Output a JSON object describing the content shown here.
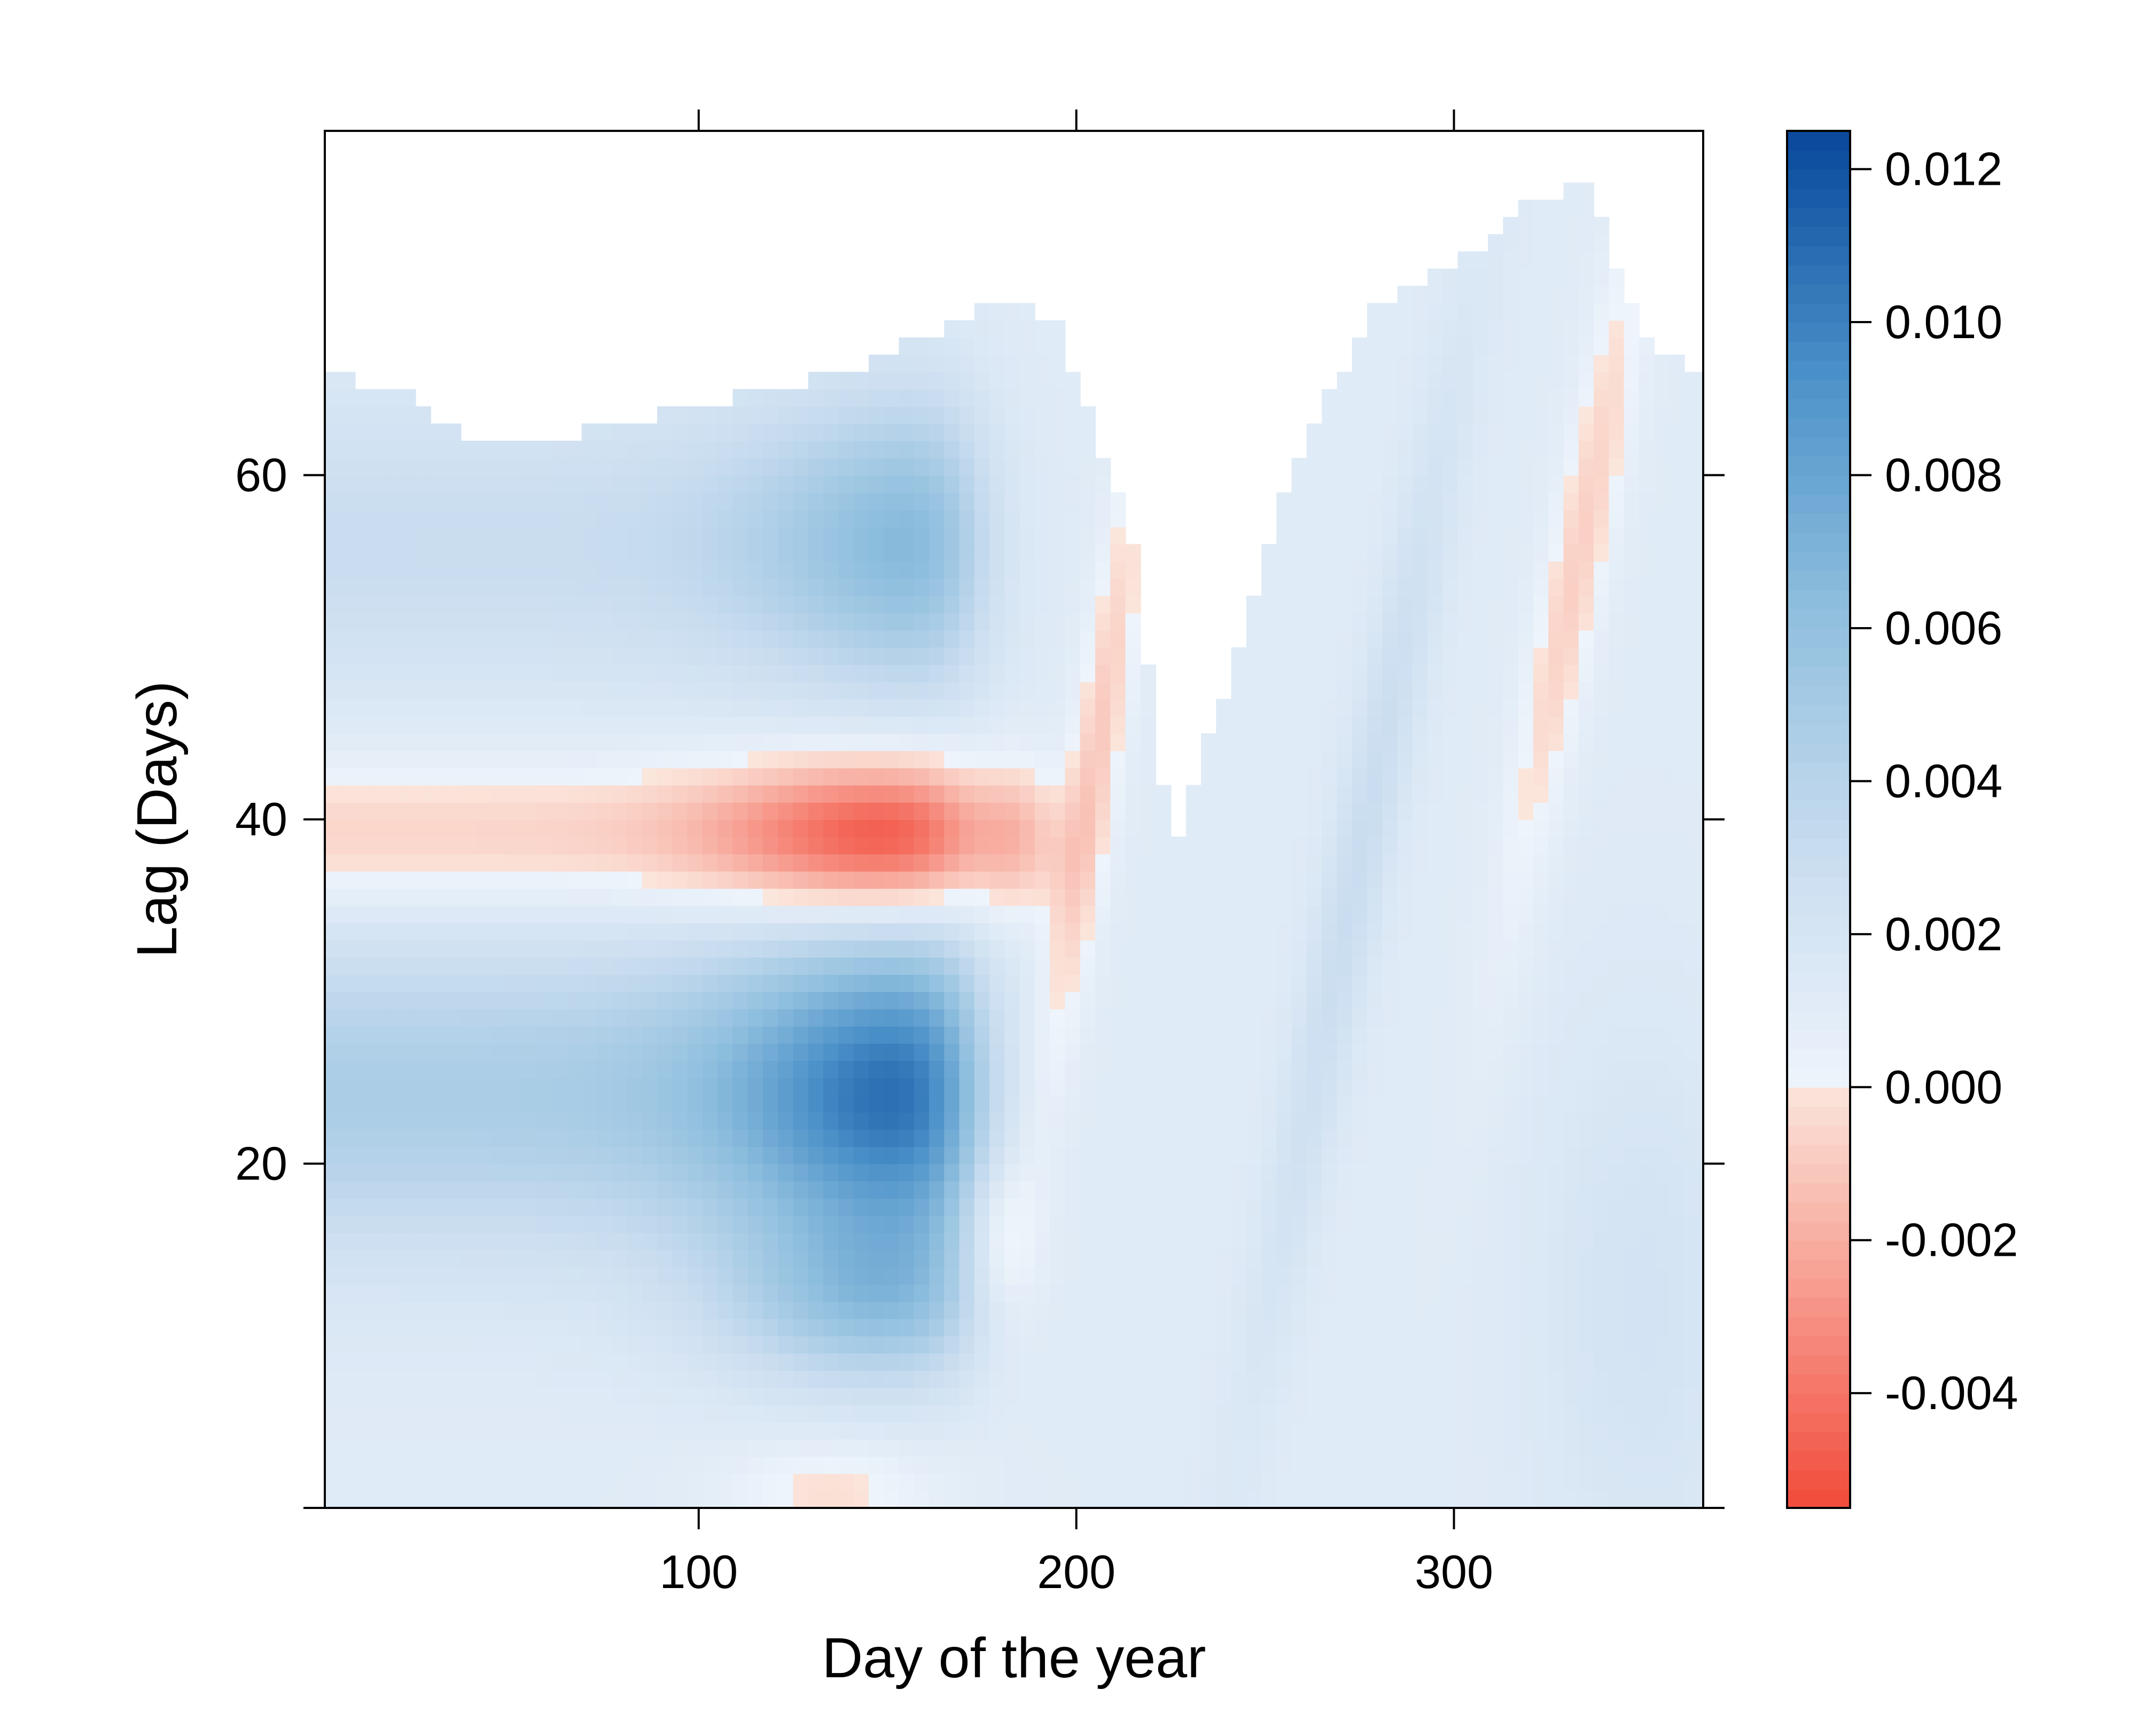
{
  "chart_data": {
    "type": "heatmap",
    "title": "",
    "xlabel": "Day of the year",
    "ylabel": "Lag (Days)",
    "xlim": [
      1,
      366
    ],
    "ylim": [
      0,
      80
    ],
    "x_ticks": [
      100,
      200,
      300
    ],
    "x_tick_labels": [
      "100",
      "200",
      "300"
    ],
    "y_ticks": [
      0,
      20,
      40,
      60
    ],
    "y_tick_labels": [
      "",
      "20",
      "40",
      "60"
    ],
    "colorbar": {
      "range": [
        -0.0055,
        0.0125
      ],
      "ticks": [
        -0.004,
        -0.002,
        0.0,
        0.002,
        0.004,
        0.006,
        0.008,
        0.01,
        0.012
      ],
      "tick_labels": [
        "-0.004",
        "-0.002",
        "0.000",
        "0.002",
        "0.004",
        "0.006",
        "0.008",
        "0.010",
        "0.012"
      ],
      "negative_colors": [
        "#f24a3a",
        "#fbe6dc"
      ],
      "positive_colors": [
        "#eef4fb",
        "#c8dcef",
        "#8fbfde",
        "#4a90c8",
        "#08479a"
      ]
    },
    "lag_boundary": {
      "day": [
        1,
        20,
        40,
        60,
        80,
        100,
        120,
        140,
        160,
        180,
        195,
        215,
        225,
        240,
        260,
        280,
        300,
        320,
        335,
        350,
        366
      ],
      "max_lag": [
        66,
        65,
        62,
        62,
        63,
        64,
        65,
        66,
        68,
        70,
        69,
        56,
        38,
        48,
        62,
        70,
        72,
        76,
        77,
        68,
        66
      ]
    },
    "surface_features": [
      {
        "type": "negative",
        "center": [
          152,
          39
        ],
        "spread": [
          55,
          3.2
        ],
        "peak": -0.0045,
        "note": "strong red band"
      },
      {
        "type": "positive",
        "center": [
          150,
          24
        ],
        "spread": [
          45,
          6
        ],
        "peak": 0.01
      },
      {
        "type": "positive",
        "center": [
          170,
          56
        ],
        "spread": [
          40,
          6
        ],
        "peak": 0.006
      },
      {
        "type": "negative",
        "center": [
          205,
          42
        ],
        "spread": [
          8,
          12
        ],
        "peak": -0.0012
      },
      {
        "type": "positive",
        "center": [
          275,
          38
        ],
        "spread": [
          15,
          18
        ],
        "peak": 0.0025
      },
      {
        "type": "negative",
        "center": [
          330,
          55
        ],
        "spread": [
          10,
          15
        ],
        "peak": -0.0008
      }
    ]
  }
}
